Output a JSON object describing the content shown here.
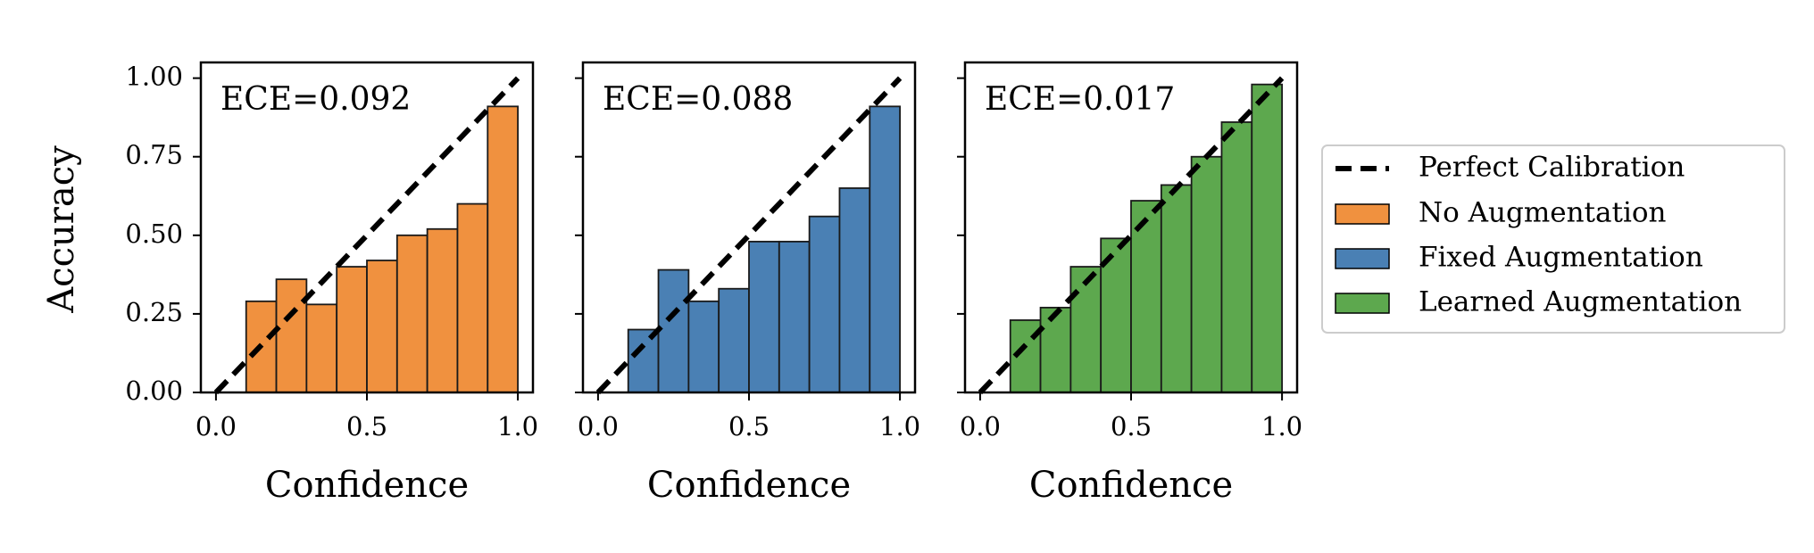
{
  "figure": {
    "ylabel": "Accuracy",
    "legend": {
      "placement": "right",
      "entries": [
        {
          "label": "Perfect Calibration",
          "style": "dashed-line",
          "color": "#000000"
        },
        {
          "label": "No Augmentation",
          "style": "patch",
          "color": "#F0913F"
        },
        {
          "label": "Fixed Augmentation",
          "style": "patch",
          "color": "#4A80B4"
        },
        {
          "label": "Learned Augmentation",
          "style": "patch",
          "color": "#5DA84E"
        }
      ]
    }
  },
  "chart_data": [
    {
      "type": "bar",
      "series_name": "No Augmentation",
      "color": "#F0913F",
      "annotation": "ECE=0.092",
      "xlabel": "Confidence",
      "xlim": [
        -0.05,
        1.05
      ],
      "ylim": [
        0,
        1.05
      ],
      "xticks": [
        "0.0",
        "0.5",
        "1.0"
      ],
      "yticks": [
        "0.00",
        "0.25",
        "0.50",
        "0.75",
        "1.00"
      ],
      "bin_width": 0.1,
      "bins_left": [
        0.1,
        0.2,
        0.3,
        0.4,
        0.5,
        0.6,
        0.7,
        0.8,
        0.9
      ],
      "values": [
        0.29,
        0.36,
        0.28,
        0.4,
        0.42,
        0.5,
        0.52,
        0.6,
        0.91
      ],
      "reference_line": {
        "label": "Perfect Calibration",
        "from": [
          0,
          0
        ],
        "to": [
          1,
          1
        ]
      }
    },
    {
      "type": "bar",
      "series_name": "Fixed Augmentation",
      "color": "#4A80B4",
      "annotation": "ECE=0.088",
      "xlabel": "Confidence",
      "xlim": [
        -0.05,
        1.05
      ],
      "ylim": [
        0,
        1.05
      ],
      "xticks": [
        "0.0",
        "0.5",
        "1.0"
      ],
      "yticks": [
        "0.00",
        "0.25",
        "0.50",
        "0.75",
        "1.00"
      ],
      "bin_width": 0.1,
      "bins_left": [
        0.1,
        0.2,
        0.3,
        0.4,
        0.5,
        0.6,
        0.7,
        0.8,
        0.9
      ],
      "values": [
        0.2,
        0.39,
        0.29,
        0.33,
        0.48,
        0.48,
        0.56,
        0.65,
        0.91
      ],
      "reference_line": {
        "label": "Perfect Calibration",
        "from": [
          0,
          0
        ],
        "to": [
          1,
          1
        ]
      }
    },
    {
      "type": "bar",
      "series_name": "Learned Augmentation",
      "color": "#5DA84E",
      "annotation": "ECE=0.017",
      "xlabel": "Confidence",
      "xlim": [
        -0.05,
        1.05
      ],
      "ylim": [
        0,
        1.05
      ],
      "xticks": [
        "0.0",
        "0.5",
        "1.0"
      ],
      "yticks": [
        "0.00",
        "0.25",
        "0.50",
        "0.75",
        "1.00"
      ],
      "bin_width": 0.1,
      "bins_left": [
        0.1,
        0.2,
        0.3,
        0.4,
        0.5,
        0.6,
        0.7,
        0.8,
        0.9
      ],
      "values": [
        0.23,
        0.27,
        0.4,
        0.49,
        0.61,
        0.66,
        0.75,
        0.86,
        0.98
      ],
      "reference_line": {
        "label": "Perfect Calibration",
        "from": [
          0,
          0
        ],
        "to": [
          1,
          1
        ]
      }
    }
  ]
}
